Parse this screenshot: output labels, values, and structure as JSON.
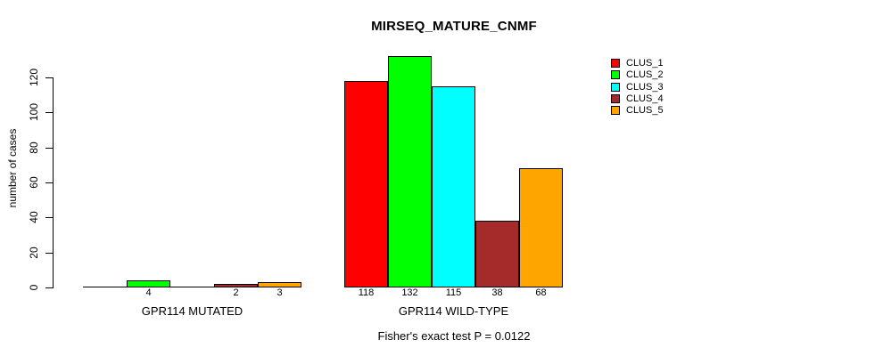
{
  "title": "MIRSEQ_MATURE_CNMF",
  "annotation": "Fisher's exact test P = 0.0122",
  "colors": {
    "background": "#ffffff",
    "text": "#000000",
    "axis": "#000000",
    "bar_border": "#000000"
  },
  "chart_data": {
    "type": "bar",
    "title": "MIRSEQ_MATURE_CNMF",
    "annotation": "Fisher's exact test P = 0.0122",
    "xlabel": "",
    "ylabel": "number of cases",
    "categories": [
      "GPR114 MUTATED",
      "GPR114 WILD-TYPE"
    ],
    "series": [
      {
        "name": "CLUS_1",
        "color": "#ff0000",
        "values": [
          0,
          118
        ]
      },
      {
        "name": "CLUS_2",
        "color": "#00ff00",
        "values": [
          4,
          132
        ]
      },
      {
        "name": "CLUS_3",
        "color": "#00ffff",
        "values": [
          0,
          115
        ]
      },
      {
        "name": "CLUS_4",
        "color": "#a52a2a",
        "values": [
          2,
          38
        ]
      },
      {
        "name": "CLUS_5",
        "color": "#ffa500",
        "values": [
          3,
          68
        ]
      }
    ],
    "yticks": [
      0,
      20,
      40,
      60,
      80,
      100,
      120
    ],
    "ylim": [
      0,
      132
    ],
    "grid": false,
    "legend_position": "top-right",
    "bar_value_labels_shown": true,
    "zero_value_labels_hidden": true
  }
}
